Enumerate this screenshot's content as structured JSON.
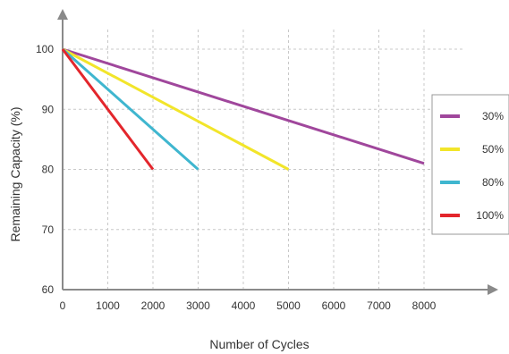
{
  "chart_data": {
    "type": "line",
    "title": "",
    "xlabel": "Number of Cycles",
    "ylabel": "Remaining Capacity (%)",
    "xlim": [
      0,
      8000
    ],
    "ylim": [
      60,
      100
    ],
    "x_ticks": [
      "0",
      "1000",
      "2000",
      "3000",
      "4000",
      "5000",
      "6000",
      "7000",
      "8000"
    ],
    "y_ticks": [
      "60",
      "70",
      "80",
      "90",
      "100"
    ],
    "grid": true,
    "legend_position": "right",
    "series": [
      {
        "name": "30%",
        "color": "#a0479c",
        "points": [
          [
            0,
            100
          ],
          [
            8000,
            81
          ]
        ]
      },
      {
        "name": "50%",
        "color": "#f2e52a",
        "points": [
          [
            0,
            100
          ],
          [
            5000,
            80
          ]
        ]
      },
      {
        "name": "80%",
        "color": "#3fb6cf",
        "points": [
          [
            0,
            100
          ],
          [
            3000,
            80
          ]
        ]
      },
      {
        "name": "100%",
        "color": "#e3262c",
        "points": [
          [
            0,
            100
          ],
          [
            2000,
            80
          ]
        ]
      }
    ]
  }
}
